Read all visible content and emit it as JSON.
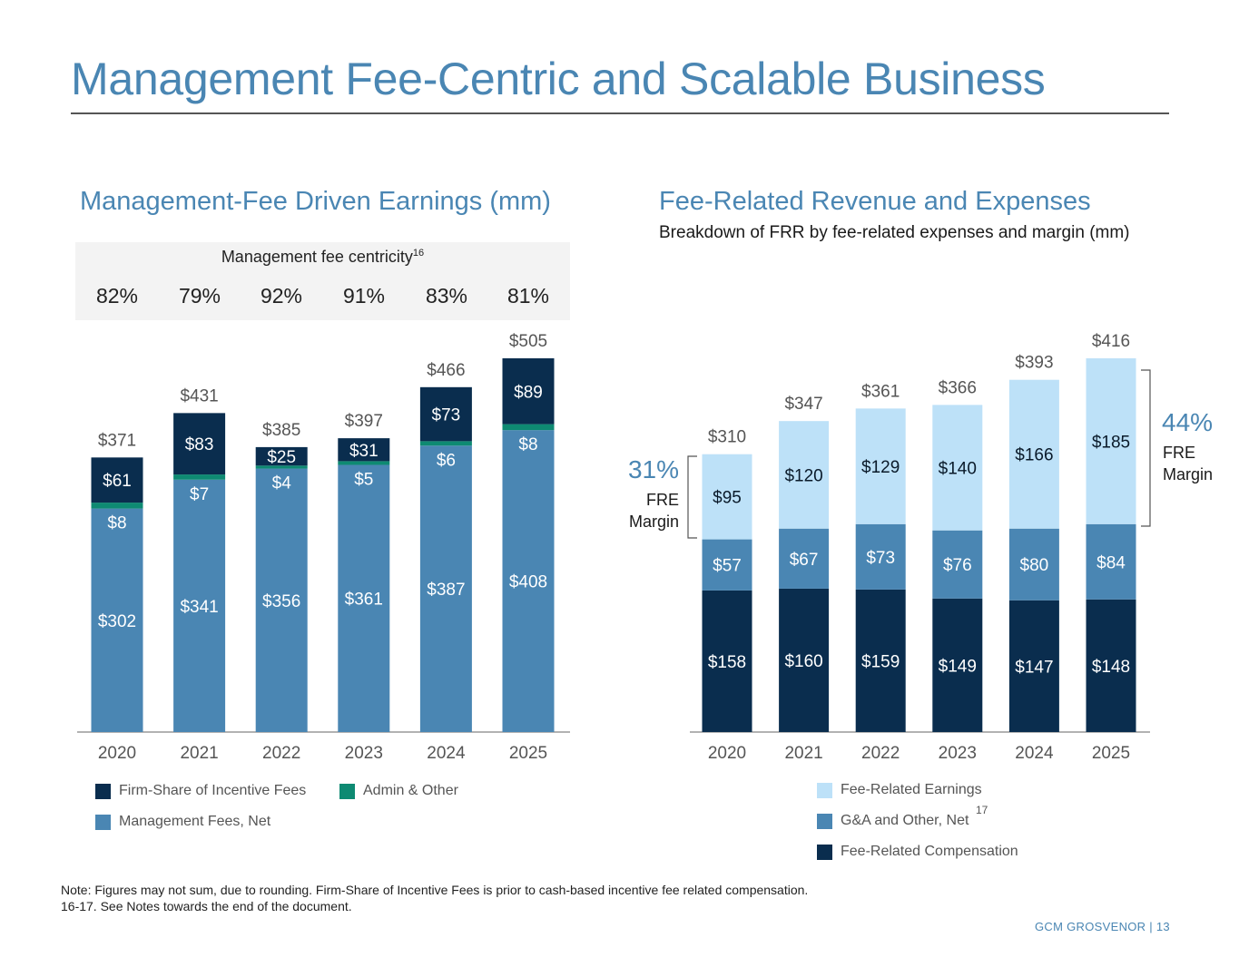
{
  "page": {
    "title": "Management Fee-Centric and Scalable Business",
    "footer": "GCM GROSVENOR | 13",
    "note_line1": "Note: Figures may not sum, due to rounding. Firm-Share of Incentive Fees is prior to cash-based incentive fee related compensation.",
    "note_line2": "16-17. See Notes towards the end of the document."
  },
  "left": {
    "subtitle": "Management-Fee Driven Earnings (mm)",
    "centricity_label": "Management fee centricity",
    "centricity_sup": "16",
    "centricity": [
      "82%",
      "79%",
      "92%",
      "91%",
      "83%",
      "81%"
    ],
    "legend": {
      "firm_share": "Firm-Share of Incentive Fees",
      "admin": "Admin & Other",
      "mgmt_fees": "Management Fees, Net"
    }
  },
  "right": {
    "subtitle": "Fee-Related Revenue and Expenses",
    "description": "Breakdown of FRR by fee-related expenses and margin (mm)",
    "margin_left_pct": "31%",
    "margin_left_label1": "FRE",
    "margin_left_label2": "Margin",
    "margin_right_pct": "44%",
    "margin_right_label1": "FRE",
    "margin_right_label2": "Margin",
    "legend": {
      "fre": "Fee-Related Earnings",
      "ga": "G&A and Other, Net",
      "comp": "Fee-Related Compensation"
    },
    "legend_sup": "17"
  },
  "colors": {
    "title": "#4a86b3",
    "dark_navy": "#0a2d4e",
    "steel_blue": "#4a86b3",
    "teal": "#0e8a72",
    "light_blue": "#bde1f8",
    "axis": "#999999"
  },
  "chart_data": [
    {
      "type": "bar",
      "stacked": true,
      "title": "Management-Fee Driven Earnings (mm)",
      "categories": [
        "2020",
        "2021",
        "2022",
        "2023",
        "2024",
        "2025"
      ],
      "series": [
        {
          "name": "Management Fees, Net",
          "values": [
            302,
            341,
            356,
            361,
            387,
            408
          ],
          "labels": [
            "$302",
            "$341",
            "$356",
            "$361",
            "$387",
            "$408"
          ]
        },
        {
          "name": "Admin & Other",
          "values": [
            8,
            7,
            4,
            5,
            6,
            8
          ],
          "labels": [
            "$8",
            "$7",
            "$4",
            "$5",
            "$6",
            "$8"
          ]
        },
        {
          "name": "Firm-Share of Incentive Fees",
          "values": [
            61,
            83,
            25,
            31,
            73,
            89
          ],
          "labels": [
            "$61",
            "$83",
            "$25",
            "$31",
            "$73",
            "$89"
          ]
        }
      ],
      "totals": [
        "$371",
        "$431",
        "$385",
        "$397",
        "$466",
        "$505"
      ],
      "ylim": [
        0,
        505
      ]
    },
    {
      "type": "bar",
      "stacked": true,
      "title": "Fee-Related Revenue and Expenses",
      "categories": [
        "2020",
        "2021",
        "2022",
        "2023",
        "2024",
        "2025"
      ],
      "series": [
        {
          "name": "Fee-Related Compensation",
          "values": [
            158,
            160,
            159,
            149,
            147,
            148
          ],
          "labels": [
            "$158",
            "$160",
            "$159",
            "$149",
            "$147",
            "$148"
          ]
        },
        {
          "name": "G&A and Other, Net",
          "values": [
            57,
            67,
            73,
            76,
            80,
            84
          ],
          "labels": [
            "$57",
            "$67",
            "$73",
            "$76",
            "$80",
            "$84"
          ]
        },
        {
          "name": "Fee-Related Earnings",
          "values": [
            95,
            120,
            129,
            140,
            166,
            185
          ],
          "labels": [
            "$95",
            "$120",
            "$129",
            "$140",
            "$166",
            "$185"
          ]
        }
      ],
      "totals": [
        "$310",
        "$347",
        "$361",
        "$366",
        "$393",
        "$416"
      ],
      "ylim": [
        0,
        416
      ]
    }
  ]
}
